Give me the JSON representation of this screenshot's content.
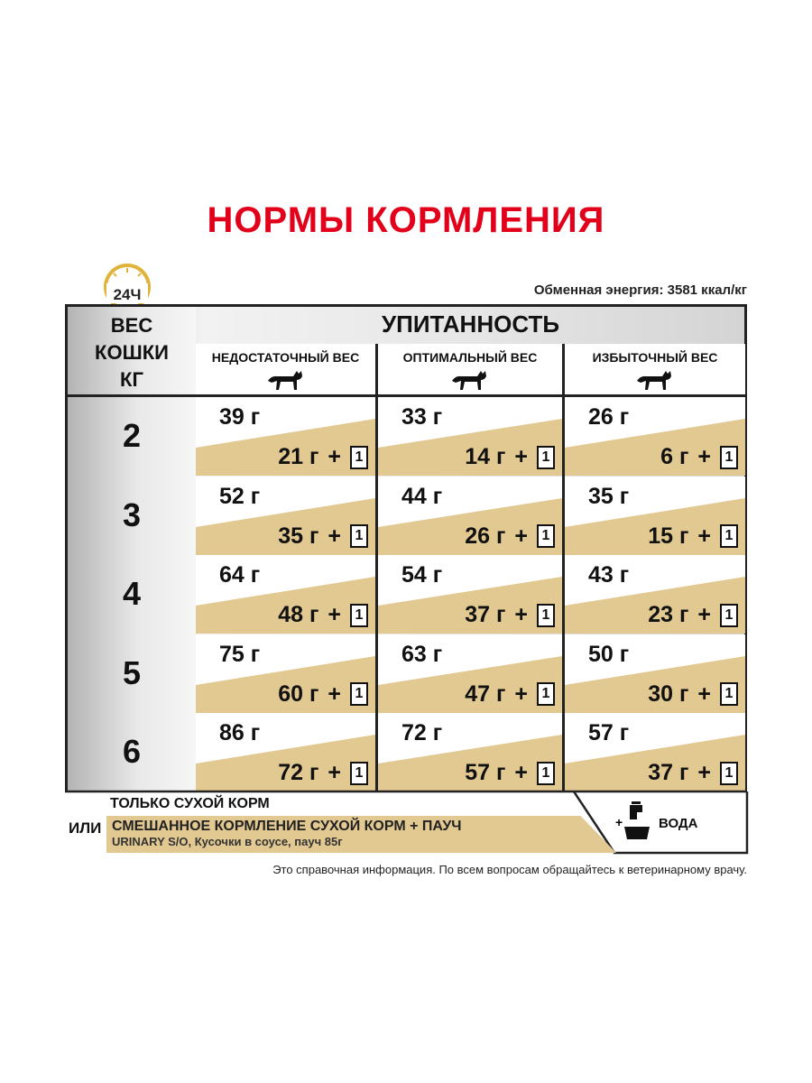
{
  "title": "НОРМЫ КОРМЛЕНИЯ",
  "clock_label": "24Ч",
  "energy": "Обменная энергия: 3581 ккал/кг",
  "weight_header": [
    "ВЕС",
    "КОШКИ",
    "КГ"
  ],
  "condition_header": "УПИТАННОСТЬ",
  "columns": [
    "НЕДОСТАТОЧНЫЙ ВЕС",
    "ОПТИМАЛЬНЫЙ ВЕС",
    "ИЗБЫТОЧНЫЙ ВЕС"
  ],
  "pouch_count": "1",
  "plus": "+",
  "rows": [
    {
      "weight": "2",
      "cells": [
        {
          "dry": "39 г",
          "mix": "21 г"
        },
        {
          "dry": "33 г",
          "mix": "14 г"
        },
        {
          "dry": "26 г",
          "mix": "6 г"
        }
      ]
    },
    {
      "weight": "3",
      "cells": [
        {
          "dry": "52 г",
          "mix": "35 г"
        },
        {
          "dry": "44 г",
          "mix": "26 г"
        },
        {
          "dry": "35 г",
          "mix": "15 г"
        }
      ]
    },
    {
      "weight": "4",
      "cells": [
        {
          "dry": "64 г",
          "mix": "48 г"
        },
        {
          "dry": "54 г",
          "mix": "37 г"
        },
        {
          "dry": "43 г",
          "mix": "23 г"
        }
      ]
    },
    {
      "weight": "5",
      "cells": [
        {
          "dry": "75 г",
          "mix": "60 г"
        },
        {
          "dry": "63 г",
          "mix": "47 г"
        },
        {
          "dry": "50 г",
          "mix": "30 г"
        }
      ]
    },
    {
      "weight": "6",
      "cells": [
        {
          "dry": "86 г",
          "mix": "72 г"
        },
        {
          "dry": "72 г",
          "mix": "57 г"
        },
        {
          "dry": "57 г",
          "mix": "37 г"
        }
      ]
    }
  ],
  "legend": {
    "dry_only": "ТОЛЬКО СУХОЙ КОРМ",
    "or": "ИЛИ",
    "mixed": "СМЕШАННОЕ КОРМЛЕНИЕ СУХОЙ КОРМ + ПАУЧ",
    "mixed_detail": "URINARY S/O, Кусочки в соусе, пауч 85г",
    "water": "ВОДА"
  },
  "note": "Это справочная информация. По всем вопросам обращайтесь к ветеринарному врачу.",
  "colors": {
    "title": "#e2001a",
    "tan": "#e2c891",
    "clock": "#e0b43a"
  }
}
